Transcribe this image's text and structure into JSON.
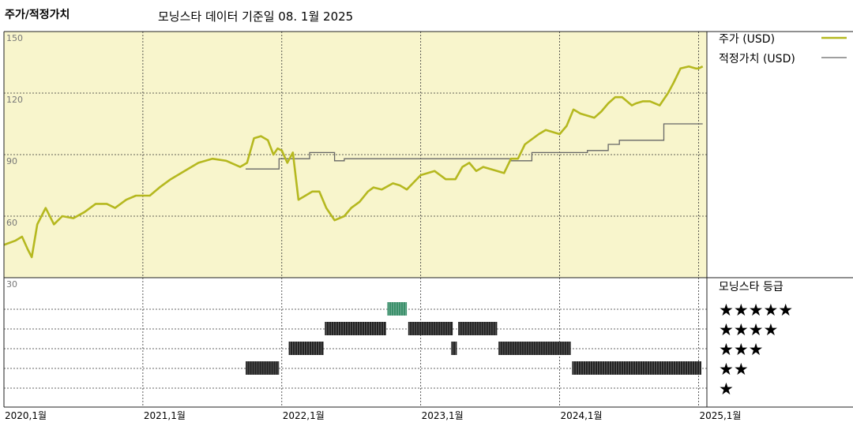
{
  "header": {
    "title": "주가/적정가치",
    "subtitle": "모닝스타 데이터 기준일 08. 1월 2025"
  },
  "colors": {
    "price": "#b5b81f",
    "fair_value": "#666666",
    "plot_bg": "#f8f5cc",
    "highlight_5star": "#3a8f6a",
    "rating_bar": "#222222"
  },
  "chart_data": {
    "type": "line",
    "ylim": [
      30,
      150
    ],
    "yticks": [
      "150",
      "120",
      "90",
      "60",
      "30"
    ],
    "ytick_values": [
      150,
      120,
      90,
      60,
      30
    ],
    "xlim": [
      2020.0,
      2025.06
    ],
    "xticks": [
      "2020,1월",
      "2021,1월",
      "2022,1월",
      "2023,1월",
      "2024,1월",
      "2025,1월"
    ],
    "xtick_values": [
      2020.0,
      2021.0,
      2022.0,
      2023.0,
      2024.0,
      2025.0
    ],
    "series": [
      {
        "name": "주가 (USD)",
        "x": [
          2020.0,
          2020.08,
          2020.13,
          2020.17,
          2020.2,
          2020.24,
          2020.3,
          2020.36,
          2020.42,
          2020.5,
          2020.58,
          2020.66,
          2020.74,
          2020.8,
          2020.88,
          2020.95,
          2021.0,
          2021.05,
          2021.12,
          2021.2,
          2021.3,
          2021.4,
          2021.5,
          2021.6,
          2021.7,
          2021.75,
          2021.8,
          2021.85,
          2021.9,
          2021.94,
          2021.97,
          2022.0,
          2022.04,
          2022.08,
          2022.12,
          2022.17,
          2022.22,
          2022.27,
          2022.32,
          2022.38,
          2022.45,
          2022.5,
          2022.56,
          2022.62,
          2022.66,
          2022.72,
          2022.8,
          2022.85,
          2022.9,
          2023.0,
          2023.05,
          2023.1,
          2023.18,
          2023.25,
          2023.3,
          2023.35,
          2023.4,
          2023.45,
          2023.55,
          2023.6,
          2023.65,
          2023.7,
          2023.75,
          2023.85,
          2023.9,
          2024.0,
          2024.05,
          2024.1,
          2024.15,
          2024.2,
          2024.25,
          2024.3,
          2024.35,
          2024.4,
          2024.45,
          2024.52,
          2024.55,
          2024.6,
          2024.65,
          2024.72,
          2024.78,
          2024.82,
          2024.87,
          2024.93,
          2024.98,
          2025.0,
          2025.03
        ],
        "y": [
          46,
          48,
          50,
          44,
          40,
          56,
          64,
          56,
          60,
          59,
          62,
          66,
          66,
          64,
          68,
          70,
          70,
          70,
          74,
          78,
          82,
          86,
          88,
          87,
          84,
          86,
          98,
          99,
          97,
          90,
          93,
          92,
          86,
          91,
          68,
          70,
          72,
          72,
          64,
          58,
          60,
          64,
          67,
          72,
          74,
          73,
          76,
          75,
          73,
          80,
          81,
          82,
          78,
          78,
          84,
          86,
          82,
          84,
          82,
          81,
          88,
          88,
          95,
          100,
          102,
          100,
          104,
          112,
          110,
          109,
          108,
          111,
          115,
          118,
          118,
          114,
          115,
          116,
          116,
          114,
          120,
          125,
          132,
          133,
          132,
          132,
          133
        ]
      },
      {
        "name": "적정가치 (USD)",
        "x": [
          2021.74,
          2021.98,
          2021.98,
          2022.2,
          2022.2,
          2022.38,
          2022.38,
          2022.45,
          2022.45,
          2022.65,
          2022.65,
          2023.3,
          2023.3,
          2023.65,
          2023.65,
          2023.8,
          2023.8,
          2024.2,
          2024.2,
          2024.35,
          2024.35,
          2024.43,
          2024.43,
          2024.6,
          2024.6,
          2024.75,
          2024.75,
          2025.03
        ],
        "y": [
          83,
          83,
          88,
          88,
          91,
          91,
          87,
          87,
          88,
          88,
          88,
          88,
          88,
          88,
          87,
          87,
          91,
          91,
          92,
          92,
          95,
          95,
          97,
          97,
          97,
          97,
          105,
          105
        ]
      }
    ],
    "legend_position": "right",
    "rating": {
      "title": "모닝스타 등급",
      "levels": [
        "★★★★★",
        "★★★★",
        "★★★",
        "★★",
        "★"
      ],
      "periods": [
        {
          "start": 2021.74,
          "end": 2021.98,
          "stars": 2
        },
        {
          "start": 2022.05,
          "end": 2022.3,
          "stars": 3
        },
        {
          "start": 2022.31,
          "end": 2022.75,
          "stars": 4
        },
        {
          "start": 2022.76,
          "end": 2022.9,
          "stars": 5
        },
        {
          "start": 2022.91,
          "end": 2023.23,
          "stars": 4
        },
        {
          "start": 2023.22,
          "end": 2023.26,
          "stars": 3
        },
        {
          "start": 2023.27,
          "end": 2023.55,
          "stars": 4
        },
        {
          "start": 2023.56,
          "end": 2024.08,
          "stars": 3
        },
        {
          "start": 2024.09,
          "end": 2025.02,
          "stars": 2
        }
      ]
    }
  }
}
